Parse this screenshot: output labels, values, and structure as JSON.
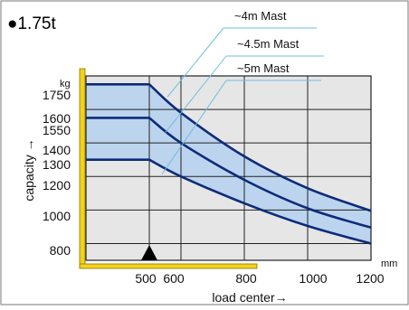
{
  "chart_data": {
    "type": "line",
    "title": "●1.75t",
    "xlabel": "load center→",
    "ylabel": "capacity →",
    "x_unit": "mm",
    "y_unit": "kg",
    "xlim": [
      300,
      1200
    ],
    "ylim": [
      700,
      1800
    ],
    "x_ticks": [
      500,
      600,
      800,
      1000,
      1200
    ],
    "y_ticks": [
      800,
      1000,
      1200,
      1300,
      1400,
      1550,
      1600,
      1750
    ],
    "grid": true,
    "legend": "top-right, leader lines to curves",
    "series": [
      {
        "name": "~4m Mast",
        "x": [
          300,
          500,
          600,
          800,
          1000,
          1200
        ],
        "values": [
          1750,
          1750,
          1580,
          1320,
          1130,
          995
        ]
      },
      {
        "name": "~4.5m Mast",
        "x": [
          300,
          500,
          600,
          800,
          1000,
          1200
        ],
        "values": [
          1550,
          1550,
          1400,
          1180,
          1010,
          895
        ]
      },
      {
        "name": "~5m Mast",
        "x": [
          300,
          500,
          600,
          800,
          1000,
          1200
        ],
        "values": [
          1300,
          1300,
          1200,
          1040,
          905,
          800
        ]
      }
    ],
    "colors": {
      "curve": "#0d2b7a",
      "band": "#bcd4ee",
      "plot_bg": "#e6e6e6",
      "grid": "#222222",
      "leader": "#6fbde0",
      "forklift": "#f2d21b",
      "frame": "#666666"
    }
  }
}
